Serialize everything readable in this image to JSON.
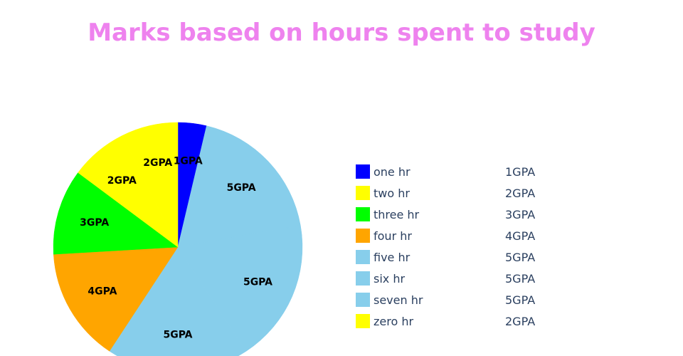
{
  "chart_data": {
    "type": "pie",
    "title": "Marks based on hours spent to study",
    "title_color": "#ee82ee",
    "legend_position": "right",
    "slices": [
      {
        "label": "one hr",
        "value": 1,
        "text": "1GPA",
        "color": "#0000ff"
      },
      {
        "label": "five hr",
        "value": 5,
        "text": "5GPA",
        "color": "#87ceeb"
      },
      {
        "label": "six hr",
        "value": 5,
        "text": "5GPA",
        "color": "#87ceeb"
      },
      {
        "label": "seven hr",
        "value": 5,
        "text": "5GPA",
        "color": "#87ceeb"
      },
      {
        "label": "four hr",
        "value": 4,
        "text": "4GPA",
        "color": "#ffa500"
      },
      {
        "label": "three hr",
        "value": 3,
        "text": "3GPA",
        "color": "#00ff00"
      },
      {
        "label": "two hr",
        "value": 2,
        "text": "2GPA",
        "color": "#ffff00"
      },
      {
        "label": "zero hr",
        "value": 2,
        "text": "2GPA",
        "color": "#ffff00"
      }
    ],
    "legend": [
      {
        "name": "one hr",
        "value": "1GPA",
        "color": "#0000ff"
      },
      {
        "name": "two hr",
        "value": "2GPA",
        "color": "#ffff00"
      },
      {
        "name": "three hr",
        "value": "3GPA",
        "color": "#00ff00"
      },
      {
        "name": "four hr",
        "value": "4GPA",
        "color": "#ffa500"
      },
      {
        "name": "five hr",
        "value": "5GPA",
        "color": "#87ceeb"
      },
      {
        "name": "six hr",
        "value": "5GPA",
        "color": "#87ceeb"
      },
      {
        "name": "seven hr",
        "value": "5GPA",
        "color": "#87ceeb"
      },
      {
        "name": "zero hr",
        "value": "2GPA",
        "color": "#ffff00"
      }
    ]
  }
}
